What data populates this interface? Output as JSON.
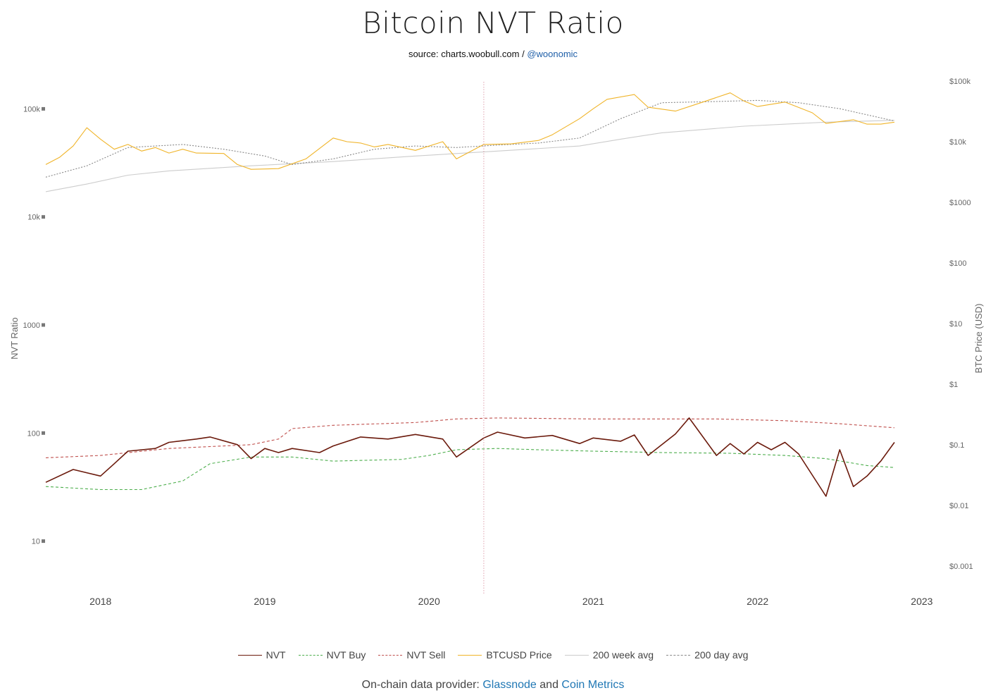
{
  "title": "Bitcoin NVT Ratio",
  "source": {
    "prefix": "source: charts.woobull.com / ",
    "handle": "@woonomic"
  },
  "footer": {
    "prefix": "On-chain data provider: ",
    "provider1": "Glassnode",
    "and": " and ",
    "provider2": "Coin Metrics"
  },
  "chart_data": {
    "type": "line",
    "title": "Bitcoin NVT Ratio",
    "x_range": [
      "2017-09",
      "2022-11"
    ],
    "x_ticks": [
      "2018",
      "2019",
      "2020",
      "2021",
      "2022",
      "2023"
    ],
    "y_left": {
      "label": "NVT Ratio",
      "scale": "log",
      "ticks": [
        {
          "v": 100000,
          "t": "100k"
        },
        {
          "v": 10000,
          "t": "10k"
        },
        {
          "v": 1000,
          "t": "1000"
        },
        {
          "v": 100,
          "t": "100"
        },
        {
          "v": 10,
          "t": "10"
        }
      ]
    },
    "y_right": {
      "label": "BTC Price (USD)",
      "scale": "log",
      "ticks": [
        {
          "v": 100000,
          "t": "$100k"
        },
        {
          "v": 10000,
          "t": "$10k"
        },
        {
          "v": 1000,
          "t": "$1000"
        },
        {
          "v": 100,
          "t": "$100"
        },
        {
          "v": 10,
          "t": "$10"
        },
        {
          "v": 1,
          "t": "$1"
        },
        {
          "v": 0.1,
          "t": "$0.1"
        },
        {
          "v": 0.01,
          "t": "$0.01"
        },
        {
          "v": 0.001,
          "t": "$0.001"
        }
      ]
    },
    "legend_position": "bottom-center",
    "grid": false,
    "hover_marker_date": "2020-05",
    "series": [
      {
        "name": "NVT",
        "axis": "left",
        "color": "#6b1a0c",
        "dash": "solid",
        "points": [
          [
            "2017-09",
            35
          ],
          [
            "2017-11",
            46
          ],
          [
            "2018-01",
            40
          ],
          [
            "2018-02",
            52
          ],
          [
            "2018-03",
            68
          ],
          [
            "2018-05",
            72
          ],
          [
            "2018-06",
            82
          ],
          [
            "2018-08",
            88
          ],
          [
            "2018-09",
            92
          ],
          [
            "2018-11",
            78
          ],
          [
            "2018-12",
            58
          ],
          [
            "2019-01",
            72
          ],
          [
            "2019-02",
            66
          ],
          [
            "2019-03",
            72
          ],
          [
            "2019-05",
            66
          ],
          [
            "2019-06",
            76
          ],
          [
            "2019-08",
            92
          ],
          [
            "2019-10",
            88
          ],
          [
            "2019-12",
            97
          ],
          [
            "2020-02",
            88
          ],
          [
            "2020-03",
            60
          ],
          [
            "2020-05",
            90
          ],
          [
            "2020-06",
            102
          ],
          [
            "2020-08",
            90
          ],
          [
            "2020-10",
            95
          ],
          [
            "2020-12",
            80
          ],
          [
            "2021-01",
            90
          ],
          [
            "2021-03",
            84
          ],
          [
            "2021-04",
            96
          ],
          [
            "2021-05",
            62
          ],
          [
            "2021-07",
            98
          ],
          [
            "2021-08",
            138
          ],
          [
            "2021-10",
            62
          ],
          [
            "2021-11",
            80
          ],
          [
            "2021-12",
            64
          ],
          [
            "2022-01",
            82
          ],
          [
            "2022-02",
            70
          ],
          [
            "2022-03",
            82
          ],
          [
            "2022-04",
            64
          ],
          [
            "2022-06",
            26
          ],
          [
            "2022-07",
            70
          ],
          [
            "2022-08",
            32
          ],
          [
            "2022-09",
            40
          ],
          [
            "2022-10",
            55
          ],
          [
            "2022-11",
            82
          ]
        ]
      },
      {
        "name": "NVT Buy",
        "axis": "left",
        "color": "#4cae4c",
        "dash": "4,3",
        "points": [
          [
            "2017-09",
            32
          ],
          [
            "2018-01",
            30
          ],
          [
            "2018-04",
            30
          ],
          [
            "2018-07",
            36
          ],
          [
            "2018-09",
            52
          ],
          [
            "2018-12",
            60
          ],
          [
            "2019-03",
            60
          ],
          [
            "2019-06",
            55
          ],
          [
            "2019-11",
            57
          ],
          [
            "2020-01",
            62
          ],
          [
            "2020-03",
            70
          ],
          [
            "2020-06",
            72
          ],
          [
            "2020-09",
            70
          ],
          [
            "2021-01",
            68
          ],
          [
            "2021-06",
            66
          ],
          [
            "2021-11",
            65
          ],
          [
            "2022-03",
            62
          ],
          [
            "2022-06",
            58
          ],
          [
            "2022-09",
            50
          ],
          [
            "2022-11",
            48
          ]
        ]
      },
      {
        "name": "NVT Sell",
        "axis": "left",
        "color": "#c0504d",
        "dash": "4,3",
        "points": [
          [
            "2017-09",
            59
          ],
          [
            "2018-01",
            62
          ],
          [
            "2018-06",
            72
          ],
          [
            "2018-12",
            78
          ],
          [
            "2019-02",
            88
          ],
          [
            "2019-03",
            110
          ],
          [
            "2019-06",
            118
          ],
          [
            "2019-12",
            125
          ],
          [
            "2020-03",
            135
          ],
          [
            "2020-06",
            138
          ],
          [
            "2021-01",
            135
          ],
          [
            "2021-06",
            135
          ],
          [
            "2021-10",
            135
          ],
          [
            "2022-03",
            130
          ],
          [
            "2022-07",
            122
          ],
          [
            "2022-11",
            112
          ]
        ]
      },
      {
        "name": "BTCUSD Price",
        "axis": "right",
        "color": "#f0b429",
        "dash": "solid",
        "points": [
          [
            "2017-09",
            4200
          ],
          [
            "2017-10",
            5500
          ],
          [
            "2017-11",
            8500
          ],
          [
            "2017-12",
            17000
          ],
          [
            "2018-01",
            11000
          ],
          [
            "2018-02",
            7500
          ],
          [
            "2018-03",
            9000
          ],
          [
            "2018-04",
            7000
          ],
          [
            "2018-05",
            8000
          ],
          [
            "2018-06",
            6500
          ],
          [
            "2018-07",
            7500
          ],
          [
            "2018-08",
            6500
          ],
          [
            "2018-10",
            6400
          ],
          [
            "2018-11",
            4200
          ],
          [
            "2018-12",
            3500
          ],
          [
            "2019-02",
            3600
          ],
          [
            "2019-04",
            5200
          ],
          [
            "2019-06",
            11500
          ],
          [
            "2019-07",
            10000
          ],
          [
            "2019-08",
            9500
          ],
          [
            "2019-09",
            8200
          ],
          [
            "2019-10",
            9000
          ],
          [
            "2019-12",
            7200
          ],
          [
            "2020-02",
            10000
          ],
          [
            "2020-03",
            5200
          ],
          [
            "2020-05",
            9000
          ],
          [
            "2020-07",
            9200
          ],
          [
            "2020-09",
            10500
          ],
          [
            "2020-10",
            13000
          ],
          [
            "2020-12",
            24000
          ],
          [
            "2021-01",
            35000
          ],
          [
            "2021-02",
            50000
          ],
          [
            "2021-04",
            60000
          ],
          [
            "2021-05",
            37000
          ],
          [
            "2021-07",
            32000
          ],
          [
            "2021-09",
            45000
          ],
          [
            "2021-11",
            64000
          ],
          [
            "2021-12",
            47000
          ],
          [
            "2022-01",
            38000
          ],
          [
            "2022-03",
            45000
          ],
          [
            "2022-05",
            30000
          ],
          [
            "2022-06",
            20000
          ],
          [
            "2022-08",
            23000
          ],
          [
            "2022-09",
            19500
          ],
          [
            "2022-10",
            19500
          ],
          [
            "2022-11",
            21000
          ]
        ]
      },
      {
        "name": "200 week avg",
        "axis": "right",
        "color": "#cccccc",
        "dash": "solid",
        "points": [
          [
            "2017-09",
            1500
          ],
          [
            "2017-12",
            2000
          ],
          [
            "2018-03",
            2800
          ],
          [
            "2018-06",
            3300
          ],
          [
            "2018-12",
            4000
          ],
          [
            "2019-06",
            4700
          ],
          [
            "2019-12",
            5800
          ],
          [
            "2020-06",
            7000
          ],
          [
            "2020-12",
            8500
          ],
          [
            "2021-03",
            11000
          ],
          [
            "2021-06",
            14000
          ],
          [
            "2021-12",
            18000
          ],
          [
            "2022-06",
            21000
          ],
          [
            "2022-11",
            22500
          ]
        ]
      },
      {
        "name": "200 day avg",
        "axis": "right",
        "color": "#888888",
        "dash": "2,2",
        "points": [
          [
            "2017-09",
            2600
          ],
          [
            "2017-12",
            4000
          ],
          [
            "2018-03",
            8000
          ],
          [
            "2018-07",
            9000
          ],
          [
            "2018-10",
            7500
          ],
          [
            "2019-01",
            5800
          ],
          [
            "2019-03",
            4200
          ],
          [
            "2019-06",
            5200
          ],
          [
            "2019-09",
            7500
          ],
          [
            "2019-12",
            8500
          ],
          [
            "2020-03",
            8000
          ],
          [
            "2020-06",
            8800
          ],
          [
            "2020-09",
            9500
          ],
          [
            "2020-12",
            11500
          ],
          [
            "2021-03",
            24000
          ],
          [
            "2021-06",
            44000
          ],
          [
            "2021-10",
            46000
          ],
          [
            "2022-01",
            48000
          ],
          [
            "2022-04",
            44000
          ],
          [
            "2022-07",
            35000
          ],
          [
            "2022-11",
            22000
          ]
        ]
      }
    ]
  }
}
